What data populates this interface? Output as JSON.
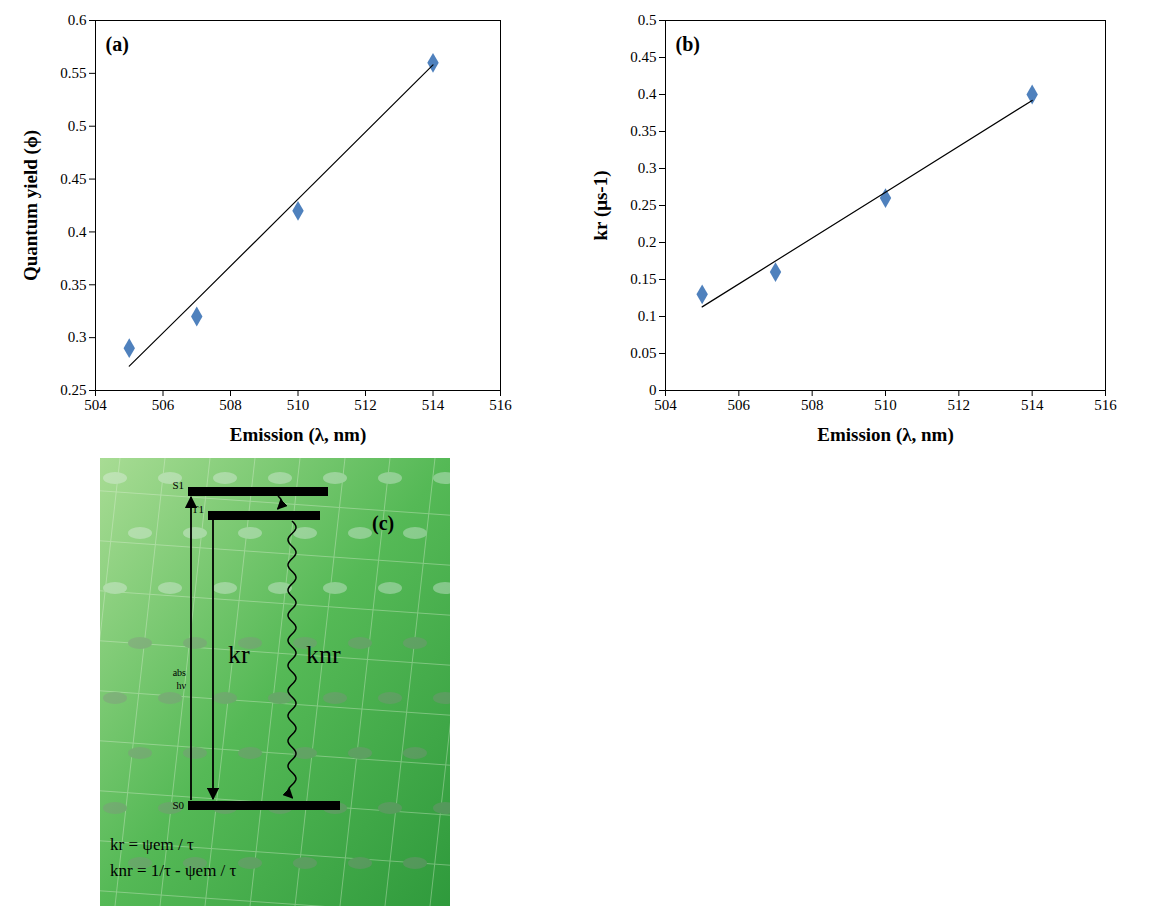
{
  "chart_data": [
    {
      "type": "scatter",
      "title": "(a)",
      "xlabel": "Emission (λ, nm)",
      "ylabel": "Quantum yield (ϕ)",
      "x": [
        505,
        507,
        510,
        514
      ],
      "series": [
        {
          "type": "scatter",
          "color": "#4f81bd",
          "marker": "diamond",
          "values": [
            0.29,
            0.32,
            0.42,
            0.56
          ]
        },
        {
          "type": "line",
          "color": "#000000",
          "line_style": "solid",
          "values": [
            0.273,
            0.336,
            0.431,
            0.558
          ]
        }
      ],
      "xlim": [
        504,
        516
      ],
      "xticks": [
        504,
        506,
        508,
        510,
        512,
        514,
        516
      ],
      "ylim": [
        0.25,
        0.6
      ],
      "yticks": [
        0.25,
        0.3,
        0.35,
        0.4,
        0.45,
        0.5,
        0.55,
        0.6
      ],
      "grid": false
    },
    {
      "type": "scatter",
      "title": "(b)",
      "xlabel": "Emission (λ, nm)",
      "ylabel": "kr (μs-1)",
      "x": [
        505,
        507,
        510,
        514
      ],
      "series": [
        {
          "type": "scatter",
          "color": "#4f81bd",
          "marker": "diamond",
          "values": [
            0.13,
            0.16,
            0.26,
            0.4
          ]
        },
        {
          "type": "line",
          "color": "#000000",
          "line_style": "solid",
          "values": [
            0.113,
            0.175,
            0.268,
            0.392
          ]
        }
      ],
      "xlim": [
        504,
        516
      ],
      "xticks": [
        504,
        506,
        508,
        510,
        512,
        514,
        516
      ],
      "ylim": [
        0,
        0.5
      ],
      "yticks": [
        0,
        0.05,
        0.1,
        0.15,
        0.2,
        0.25,
        0.3,
        0.35,
        0.4,
        0.45,
        0.5
      ],
      "grid": false
    }
  ],
  "diagram": {
    "panel": "(c)",
    "levels": [
      "S1",
      "T1",
      "S0"
    ],
    "absorption": [
      "abs",
      "hν"
    ],
    "radiative": "kr",
    "nonradiative": "knr",
    "equations": [
      "kr = ψem / τ",
      "knr = 1/τ - ψem / τ"
    ]
  }
}
